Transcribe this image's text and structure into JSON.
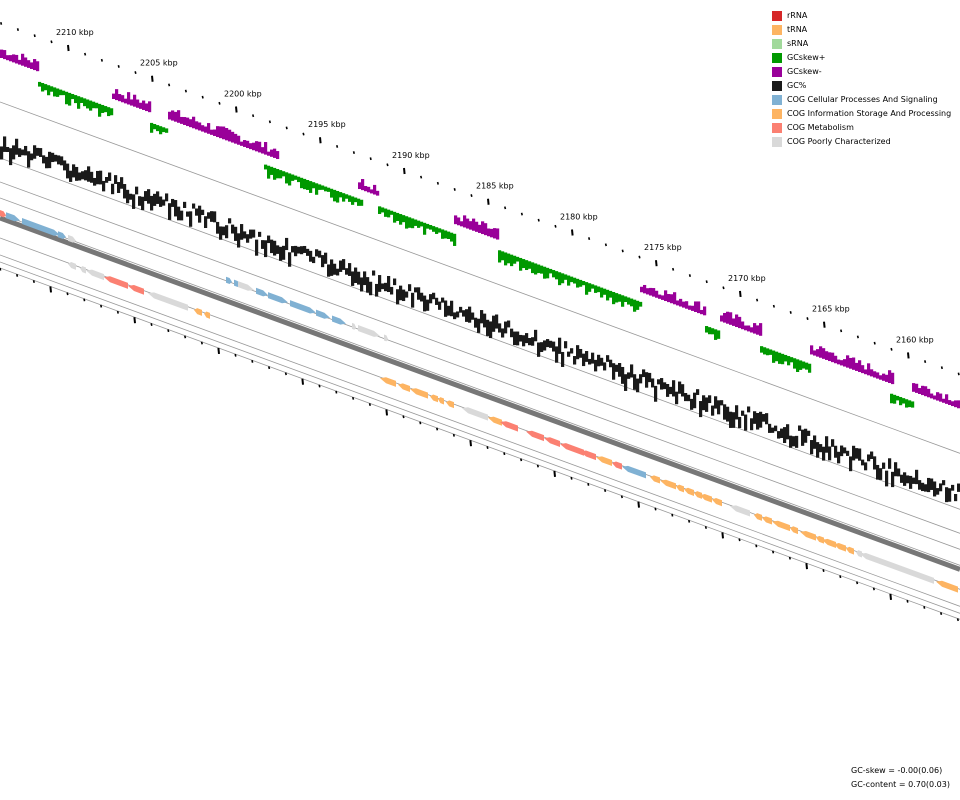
{
  "map": {
    "tick_labels": [
      "2210 kbp",
      "2205 kbp",
      "2200 kbp",
      "2195 kbp",
      "2190 kbp",
      "2185 kbp",
      "2180 kbp",
      "2175 kbp",
      "2170 kbp",
      "2165 kbp",
      "2160 kbp"
    ],
    "colors": {
      "gc_skew_pos": "#009900",
      "gc_skew_neg": "#990099",
      "gc_content": "#1a1a1a",
      "backbone": "#777777",
      "ring_line": "#999999"
    }
  },
  "legend": {
    "items": [
      {
        "label": "rRNA",
        "color": "#d62728"
      },
      {
        "label": "tRNA",
        "color": "#fdb462"
      },
      {
        "label": "sRNA",
        "color": "#a1d99b"
      },
      {
        "label": "GCskew+",
        "color": "#009900"
      },
      {
        "label": "GCskew-",
        "color": "#990099"
      },
      {
        "label": "GC%",
        "color": "#1a1a1a"
      },
      {
        "label": "COG Cellular Processes And Signaling",
        "color": "#80b1d3"
      },
      {
        "label": "COG Information Storage And Processing",
        "color": "#fdb462"
      },
      {
        "label": "COG Metabolism",
        "color": "#fb8072"
      },
      {
        "label": "COG Poorly Characterized",
        "color": "#d9d9d9"
      }
    ]
  },
  "stats": {
    "gc_skew": "GC-skew = -0.00(0.06)",
    "gc_content": "GC-content = 0.70(0.03)"
  }
}
